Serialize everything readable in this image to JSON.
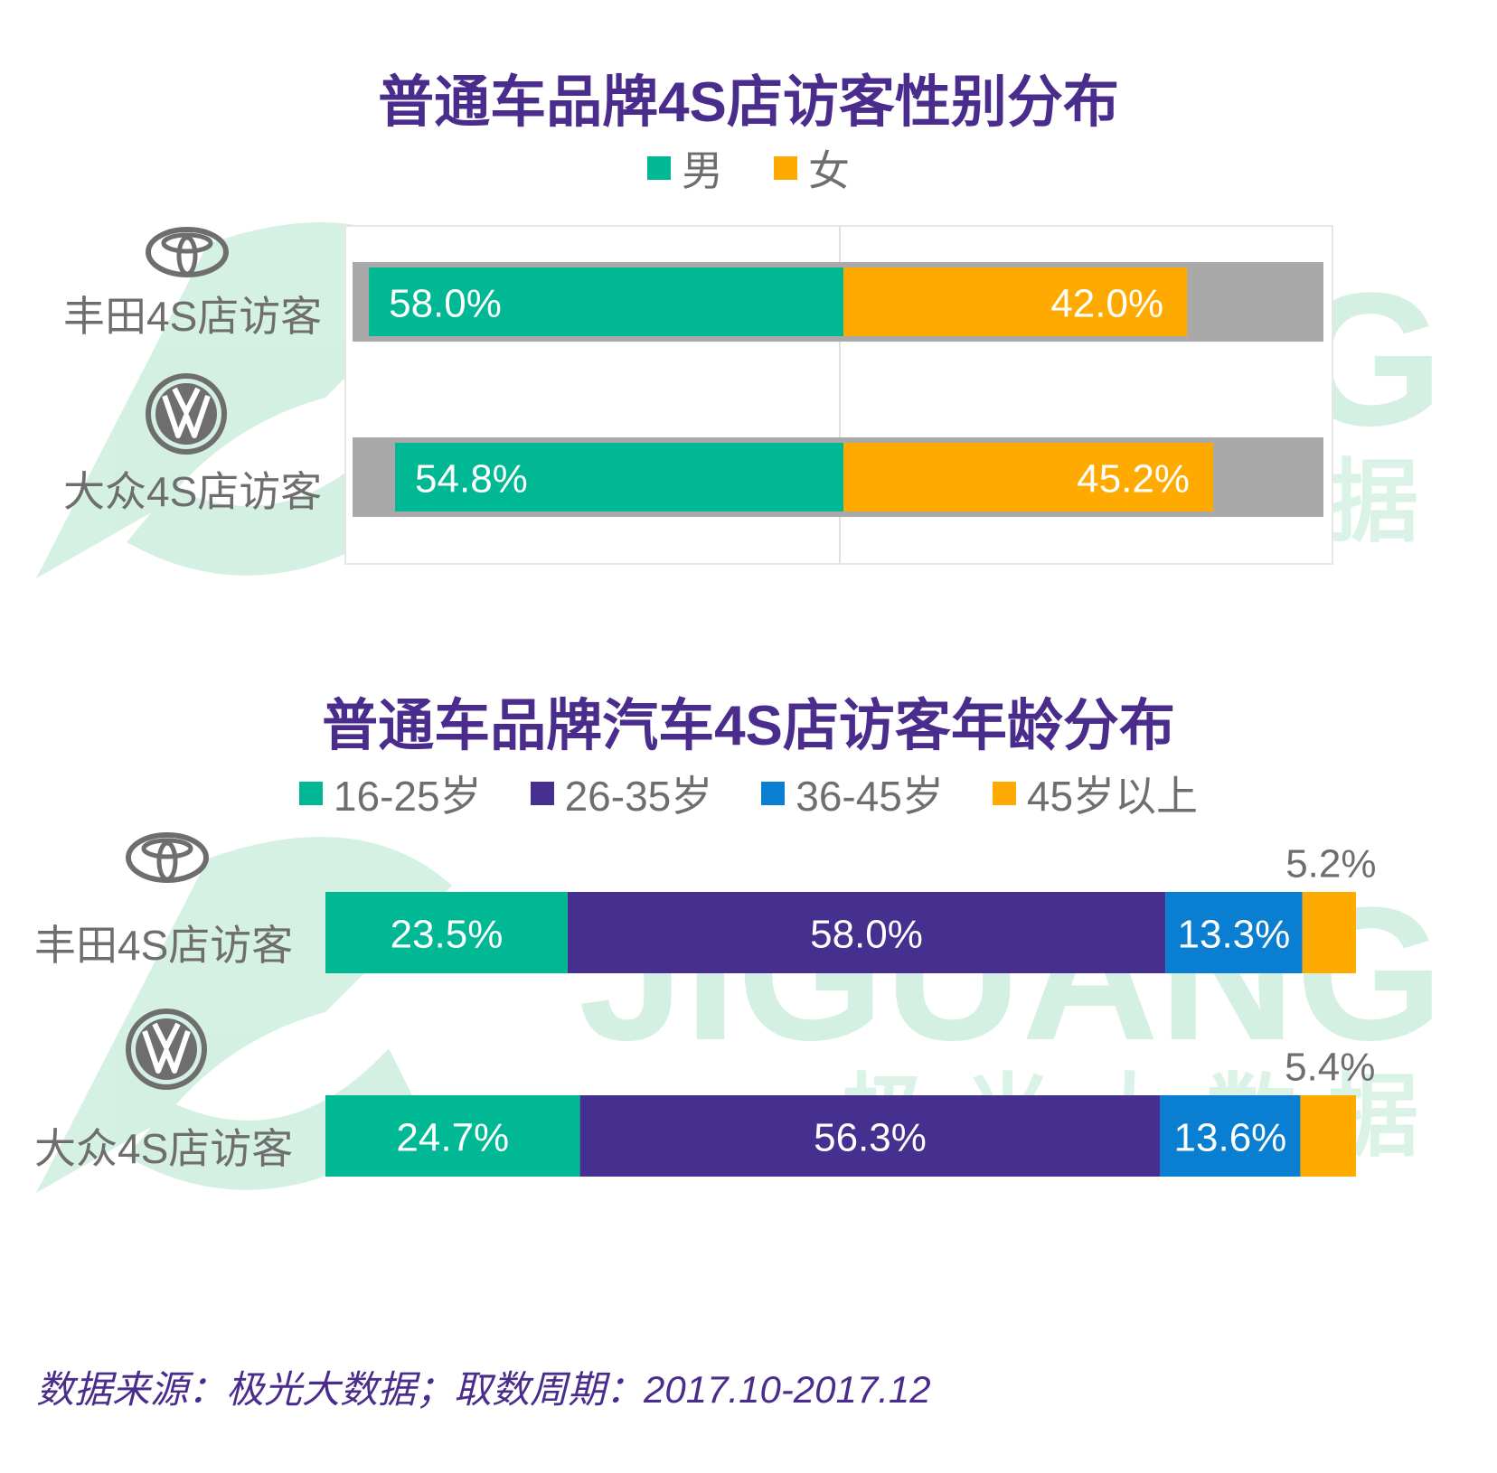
{
  "watermark": {
    "latin": "JIGUANG",
    "chinese": "极 光 大 数 据"
  },
  "charts": [
    {
      "title": "普通车品牌4S店访客性别分布",
      "legend": [
        {
          "name": "男",
          "color": "#00b894"
        },
        {
          "name": "女",
          "color": "#ffaa00"
        }
      ],
      "rows": [
        {
          "brand": "丰田4S店访客",
          "logo": "toyota-logo"
        },
        {
          "brand": "大众4S店访客",
          "logo": "volkswagen-logo"
        }
      ]
    },
    {
      "title": "普通车品牌汽车4S店访客年龄分布",
      "legend": [
        {
          "name": "16-25岁",
          "color": "#00b894"
        },
        {
          "name": "26-35岁",
          "color": "#46308f"
        },
        {
          "name": "36-45岁",
          "color": "#0a7ed1"
        },
        {
          "name": "45岁以上",
          "color": "#ffaa00"
        }
      ],
      "rows": [
        {
          "brand": "丰田4S店访客",
          "logo": "toyota-logo"
        },
        {
          "brand": "大众4S店访客",
          "logo": "volkswagen-logo"
        }
      ]
    }
  ],
  "chart_data": [
    {
      "type": "bar",
      "orientation": "horizontal",
      "stacked": true,
      "title": "普通车品牌4S店访客性别分布",
      "categories": [
        "丰田4S店访客",
        "大众4S店访客"
      ],
      "series": [
        {
          "name": "男",
          "values": [
            58.0,
            54.8
          ],
          "labels": [
            "58.0%",
            "54.8%"
          ]
        },
        {
          "name": "女",
          "values": [
            42.0,
            45.2
          ],
          "labels": [
            "42.0%",
            "45.2%"
          ]
        }
      ],
      "unit": "%",
      "legend": "top"
    },
    {
      "type": "bar",
      "orientation": "horizontal",
      "stacked": true,
      "title": "普通车品牌汽车4S店访客年龄分布",
      "categories": [
        "丰田4S店访客",
        "大众4S店访客"
      ],
      "series": [
        {
          "name": "16-25岁",
          "values": [
            23.5,
            24.7
          ],
          "labels": [
            "23.5%",
            "24.7%"
          ]
        },
        {
          "name": "26-35岁",
          "values": [
            58.0,
            56.3
          ],
          "labels": [
            "58.0%",
            "56.3%"
          ]
        },
        {
          "name": "36-45岁",
          "values": [
            13.3,
            13.6
          ],
          "labels": [
            "13.3%",
            "13.6%"
          ]
        },
        {
          "name": "45岁以上",
          "values": [
            5.2,
            5.4
          ],
          "labels": [
            "5.2%",
            "5.4%"
          ]
        }
      ],
      "unit": "%",
      "legend": "top"
    }
  ],
  "source": "数据来源：极光大数据；取数周期：2017.10-2017.12"
}
